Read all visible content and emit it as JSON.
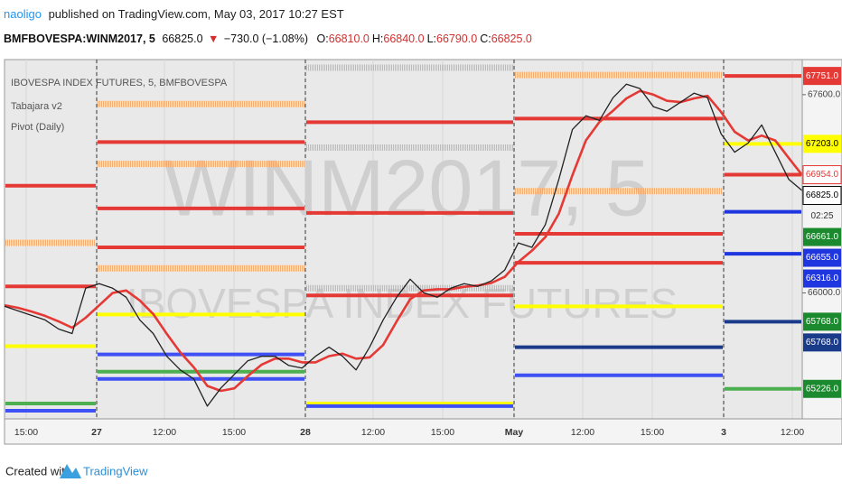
{
  "header": {
    "author": "naoligo",
    "published": "published on TradingView.com, May 03, 2017 10:27 EST",
    "symbol": "BMFBOVESPA:WINM2017, 5",
    "last": "66825.0",
    "arrow": "▼",
    "change": "−730.0 (−1.08%)",
    "ohlc": [
      {
        "key": "O:",
        "value": "66810.0"
      },
      {
        "key": "H:",
        "value": "66840.0"
      },
      {
        "key": "L:",
        "value": "66790.0"
      },
      {
        "key": "C:",
        "value": "66825.0"
      }
    ]
  },
  "chart_data": {
    "type": "line",
    "legend": [
      "IBOVESPA INDEX FUTURES, 5, BMFBOVESPA",
      "Tabajara v2",
      "Pivot (Daily)"
    ],
    "watermark": [
      "WINM2017, 5",
      "IBOVESPA INDEX FUTURES"
    ],
    "ylim": [
      64984,
      67883
    ],
    "yticks": [
      {
        "value": 67600,
        "label": "67600.0"
      },
      {
        "value": 66000,
        "label": "66000.0"
      }
    ],
    "time_labels": [
      "15:00",
      "27",
      "12:00",
      "15:00",
      "28",
      "12:00",
      "15:00",
      "May",
      "12:00",
      "15:00",
      "3",
      "12:00"
    ],
    "series": [
      {
        "color": "#222222",
        "values": [
          65892,
          65855,
          65819,
          65782,
          65709,
          65672,
          66038,
          66075,
          66038,
          65965,
          65782,
          65672,
          65489,
          65379,
          65306,
          65087,
          65233,
          65343,
          65453,
          65489,
          65489,
          65416,
          65394,
          65489,
          65562,
          65489,
          65379,
          65562,
          65782,
          65965,
          66111,
          66002,
          65965,
          66038,
          66075,
          66053,
          66097,
          66185,
          66404,
          66368,
          66551,
          66917,
          67319,
          67429,
          67392,
          67575,
          67685,
          67649,
          67502,
          67466,
          67539,
          67612,
          67575,
          67283,
          67136,
          67209,
          67356,
          67136,
          66917,
          66825
        ]
      },
      {
        "color": "#e53935",
        "values": [
          65900,
          65880,
          65850,
          65815,
          65770,
          65720,
          65800,
          65900,
          66000,
          66020,
          65940,
          65830,
          65670,
          65520,
          65400,
          65250,
          65210,
          65230,
          65330,
          65420,
          65470,
          65470,
          65440,
          65440,
          65490,
          65510,
          65470,
          65480,
          65580,
          65770,
          65950,
          66020,
          66030,
          66030,
          66050,
          66060,
          66080,
          66130,
          66250,
          66340,
          66450,
          66640,
          66950,
          67230,
          67380,
          67470,
          67570,
          67630,
          67600,
          67550,
          67540,
          67570,
          67590,
          67460,
          67300,
          67230,
          67270,
          67230,
          67090,
          66950
        ]
      }
    ],
    "pivots": [
      {
        "values": [
          66865,
          66404,
          66053,
          65570,
          65108,
          65050
        ],
        "colors": [
          "#e53935",
          "#f4a460",
          "#e53935",
          "#ffff00",
          "#4caf50",
          "#3f51f5"
        ]
      },
      {
        "values": [
          67524,
          67217,
          67041,
          66682,
          66368,
          66199,
          65826,
          65504,
          65365,
          65306
        ],
        "colors": [
          "#f4a460",
          "#e53935",
          "#f4a460",
          "#e53935",
          "#e53935",
          "#f4a460",
          "#ffff00",
          "#3f51f5",
          "#4caf50",
          "#3f51f5"
        ]
      },
      {
        "values": [
          67817,
          67378,
          67173,
          66646,
          66038,
          65980,
          65108,
          65087
        ],
        "colors": [
          "#f4a460",
          "#e53935",
          "#f4a460",
          "#e53935",
          "#f4a460",
          "#e53935",
          "#ffff00",
          "#3f51f5"
        ]
      },
      {
        "values": [
          67758,
          67407,
          66821,
          66477,
          66243,
          65892,
          65562,
          65335
        ],
        "colors": [
          "#f4a460",
          "#e53935",
          "#f4a460",
          "#e53935",
          "#e53935",
          "#ffff00",
          "#1a3a8a",
          "#3f51f5"
        ]
      },
      {
        "values": [
          67751,
          67203,
          66954,
          66655,
          66316,
          65768,
          65226
        ],
        "colors": [
          "#e53935",
          "#ffff00",
          "#e53935",
          "#1f35e0",
          "#1f35e0",
          "#1a3a8a",
          "#4caf50"
        ]
      }
    ],
    "badges": [
      {
        "value": 67751,
        "label": "67751.0",
        "color": "#e53935",
        "text_color": "#ffffff"
      },
      {
        "value": 67203,
        "label": "67203.0",
        "color": "#ffff00",
        "text_color": "#000000"
      },
      {
        "value": 66954,
        "label": "66954.0",
        "color": "#ffffff",
        "text_color": "#e53935"
      },
      {
        "value": 66825,
        "label": "66825.0",
        "color": "#ffffff",
        "text_color": "#000000"
      },
      {
        "value": 66661,
        "label": "66661.0",
        "color": "#1b8a2e",
        "text_color": "#ffffff"
      },
      {
        "value": 66655,
        "label": "66655.0",
        "color": "#1f35e0",
        "text_color": "#ffffff"
      },
      {
        "value": 66316,
        "label": "66316.0",
        "color": "#1f35e0",
        "text_color": "#ffffff"
      },
      {
        "value": 65768,
        "label": "65768.0",
        "color": "#1b8a2e",
        "text_color": "#ffffff"
      },
      {
        "value": 65768,
        "label": "65768.0",
        "color": "#1a3a8a",
        "text_color": "#ffffff"
      },
      {
        "value": 65226,
        "label": "65226.0",
        "color": "#1b8a2e",
        "text_color": "#ffffff"
      }
    ],
    "countdown": "02:25"
  },
  "footer": {
    "created": "Created with",
    "brand": "TradingView"
  }
}
